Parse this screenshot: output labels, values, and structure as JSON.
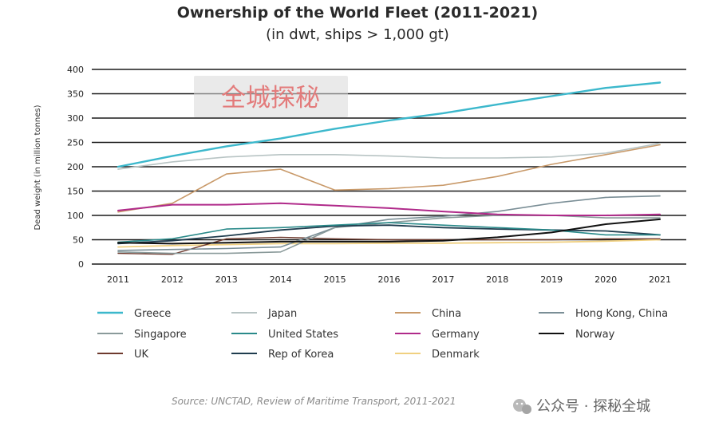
{
  "chart_data": {
    "type": "line",
    "title": "Ownership of the World Fleet (2011-2021)",
    "subtitle": "(in dwt, ships > 1,000 gt)",
    "xlabel": "",
    "ylabel": "Dead weight (in million tonnes)",
    "x": [
      "2011",
      "2012",
      "2013",
      "2014",
      "2015",
      "2016",
      "2017",
      "2018",
      "2019",
      "2020",
      "2021"
    ],
    "y_ticks": [
      "0",
      "50",
      "100",
      "150",
      "200",
      "250",
      "300",
      "350",
      "400"
    ],
    "ylim": [
      0,
      400
    ],
    "grid": true,
    "series": [
      {
        "name": "Greece",
        "color": "#3cb8cc",
        "width": 2.4,
        "values": [
          200,
          222,
          242,
          258,
          278,
          295,
          310,
          328,
          345,
          362,
          373
        ]
      },
      {
        "name": "Japan",
        "color": "#b8c4c4",
        "width": 1.6,
        "values": [
          195,
          210,
          220,
          225,
          225,
          222,
          218,
          218,
          220,
          228,
          248
        ]
      },
      {
        "name": "China",
        "color": "#c99a6a",
        "width": 1.6,
        "values": [
          107,
          125,
          185,
          195,
          152,
          155,
          162,
          180,
          205,
          225,
          245
        ]
      },
      {
        "name": "Hong Kong, China",
        "color": "#7a8e96",
        "width": 1.6,
        "values": [
          28,
          30,
          32,
          35,
          75,
          92,
          98,
          108,
          125,
          137,
          140
        ]
      },
      {
        "name": "Singapore",
        "color": "#8a9a9a",
        "width": 1.6,
        "values": [
          25,
          22,
          22,
          25,
          75,
          85,
          95,
          100,
          100,
          95,
          95
        ]
      },
      {
        "name": "United States",
        "color": "#2a8a8a",
        "width": 1.6,
        "values": [
          45,
          52,
          72,
          75,
          80,
          85,
          80,
          75,
          70,
          60,
          60
        ]
      },
      {
        "name": "Germany",
        "color": "#b02a8a",
        "width": 2.0,
        "values": [
          110,
          122,
          122,
          125,
          120,
          115,
          108,
          102,
          100,
          100,
          102
        ]
      },
      {
        "name": "Norway",
        "color": "#111111",
        "width": 2.0,
        "values": [
          44,
          42,
          44,
          46,
          46,
          46,
          48,
          55,
          65,
          82,
          92
        ]
      },
      {
        "name": "UK",
        "color": "#6e3a2e",
        "width": 1.4,
        "values": [
          22,
          20,
          52,
          55,
          52,
          50,
          50,
          50,
          50,
          52,
          52
        ]
      },
      {
        "name": "Rep of Korea",
        "color": "#1f3c4e",
        "width": 1.8,
        "values": [
          42,
          48,
          58,
          70,
          78,
          80,
          75,
          72,
          70,
          68,
          60
        ]
      },
      {
        "name": "Denmark",
        "color": "#f0d080",
        "width": 1.8,
        "values": [
          35,
          38,
          40,
          42,
          42,
          43,
          43,
          44,
          45,
          47,
          50
        ]
      }
    ]
  },
  "source_text": "Source: UNCTAD, Review of Maritime Transport, 2011-2021",
  "watermark_text": "全城探秘",
  "wechat_account": "公众号 · 探秘全城"
}
